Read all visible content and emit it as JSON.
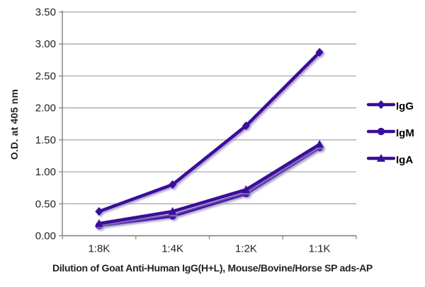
{
  "chart_data": {
    "type": "line",
    "title": "",
    "xlabel": "Dilution of Goat Anti-Human IgG(H+L), Mouse/Bovine/Horse SP ads-AP",
    "ylabel": "O.D. at 405 nm",
    "categories": [
      "1:8K",
      "1:4K",
      "1:2K",
      "1:1K"
    ],
    "series": [
      {
        "name": "IgG",
        "marker": "diamond",
        "values": [
          0.38,
          0.8,
          1.72,
          2.87
        ]
      },
      {
        "name": "IgM",
        "marker": "circle",
        "values": [
          0.16,
          0.31,
          0.66,
          1.38
        ]
      },
      {
        "name": "IgA",
        "marker": "triangle",
        "values": [
          0.19,
          0.38,
          0.72,
          1.43
        ]
      }
    ],
    "ylim": [
      0,
      3.5
    ],
    "y_tick_labels": [
      "0.00",
      "0.50",
      "1.00",
      "1.50",
      "2.00",
      "2.50",
      "3.00",
      "3.50"
    ],
    "grid": true,
    "legend_position": "right",
    "colors": {
      "series_line": "#3A0D9B",
      "series_shadow": "#9b8fc4",
      "gridline": "#a3a3a3",
      "axis": "#7f7f7f",
      "tick_text": "#231f20",
      "title_text": "#231f20"
    }
  }
}
